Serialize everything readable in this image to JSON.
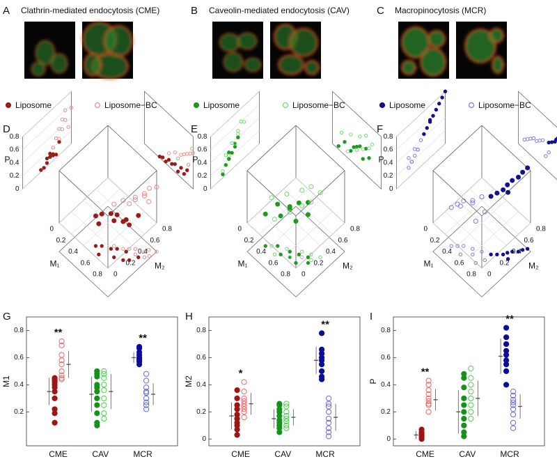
{
  "panels": [
    {
      "label": "A",
      "title": "Clathrin-mediated endocytosis (CME)"
    },
    {
      "label": "B",
      "title": "Caveolin-mediated endocytosis (CAV)"
    },
    {
      "label": "C",
      "title": "Macropinocytosis (MCR)"
    }
  ],
  "chart_data": [
    {
      "type": "scatter3d",
      "label": "D",
      "xlabel": "M₁",
      "ylabel": "M₂",
      "zlabel": "P",
      "xlim": [
        0,
        0.8
      ],
      "ylim": [
        0,
        0.8
      ],
      "zlim": [
        0,
        0.8
      ],
      "xticks": [
        0,
        0.2,
        0.4,
        0.6,
        0.8
      ],
      "yticks": [
        0,
        0.2,
        0.4,
        0.6,
        0.8
      ],
      "zticks": [
        0,
        0.2,
        0.4,
        0.6,
        0.8
      ],
      "series": [
        {
          "name": "Liposome",
          "color": "#9b1b1b",
          "filled": true,
          "x": [
            0.25,
            0.3,
            0.35,
            0.4,
            0.45,
            0.5,
            0.55,
            0.6,
            0.65,
            0.7
          ],
          "y": [
            0.35,
            0.4,
            0.3,
            0.45,
            0.5,
            0.4,
            0.55,
            0.45,
            0.5,
            0.6
          ],
          "z": [
            0.02,
            0.05,
            0.03,
            0.1,
            0.08,
            0.12,
            0.05,
            0.15,
            0.1,
            0.2
          ]
        },
        {
          "name": "Liposome−BC",
          "color": "#e88a8a",
          "filled": false,
          "x": [
            0.4,
            0.5,
            0.55,
            0.6,
            0.65,
            0.7,
            0.72,
            0.75,
            0.8,
            0.78
          ],
          "y": [
            0.5,
            0.55,
            0.6,
            0.65,
            0.6,
            0.7,
            0.75,
            0.65,
            0.8,
            0.7
          ],
          "z": [
            0.2,
            0.3,
            0.25,
            0.35,
            0.4,
            0.45,
            0.3,
            0.5,
            0.55,
            0.6
          ]
        }
      ]
    },
    {
      "type": "scatter3d",
      "label": "E",
      "xlabel": "M₁",
      "ylabel": "M₂",
      "zlabel": "P",
      "xlim": [
        0,
        0.8
      ],
      "ylim": [
        0,
        0.8
      ],
      "zlim": [
        0,
        0.8
      ],
      "xticks": [
        0,
        0.2,
        0.4,
        0.6,
        0.8
      ],
      "yticks": [
        0,
        0.2,
        0.4,
        0.6,
        0.8
      ],
      "zticks": [
        0,
        0.2,
        0.4,
        0.6,
        0.8
      ],
      "series": [
        {
          "name": "Liposome",
          "color": "#1f9a1f",
          "filled": true,
          "x": [
            0.1,
            0.2,
            0.3,
            0.35,
            0.4,
            0.45,
            0.5,
            0.55,
            0.6
          ],
          "y": [
            0.2,
            0.3,
            0.25,
            0.35,
            0.3,
            0.4,
            0.3,
            0.45,
            0.4
          ],
          "z": [
            0.05,
            0.2,
            0.15,
            0.25,
            0.3,
            0.35,
            0.2,
            0.4,
            0.3
          ]
        },
        {
          "name": "Liposome−BC",
          "color": "#6fd86f",
          "filled": false,
          "x": [
            0.15,
            0.25,
            0.3,
            0.4,
            0.45,
            0.5,
            0.55,
            0.6,
            0.65
          ],
          "y": [
            0.25,
            0.2,
            0.35,
            0.3,
            0.45,
            0.4,
            0.5,
            0.45,
            0.55
          ],
          "z": [
            0.3,
            0.1,
            0.4,
            0.25,
            0.5,
            0.35,
            0.6,
            0.45,
            0.55
          ]
        }
      ]
    },
    {
      "type": "scatter3d",
      "label": "F",
      "xlabel": "M₁",
      "ylabel": "M₂",
      "zlabel": "P",
      "xlim": [
        0,
        0.8
      ],
      "ylim": [
        0,
        0.8
      ],
      "zlim": [
        0,
        0.8
      ],
      "xticks": [
        0,
        0.2,
        0.4,
        0.6,
        0.8
      ],
      "yticks": [
        0,
        0.2,
        0.4,
        0.6,
        0.8
      ],
      "zticks": [
        0,
        0.2,
        0.4,
        0.6,
        0.8
      ],
      "series": [
        {
          "name": "Liposome",
          "color": "#101090",
          "filled": true,
          "x": [
            0.5,
            0.55,
            0.6,
            0.62,
            0.65,
            0.68,
            0.7,
            0.72,
            0.75
          ],
          "y": [
            0.45,
            0.5,
            0.55,
            0.6,
            0.65,
            0.55,
            0.7,
            0.75,
            0.8
          ],
          "z": [
            0.45,
            0.5,
            0.55,
            0.6,
            0.65,
            0.58,
            0.7,
            0.75,
            0.8
          ]
        },
        {
          "name": "Liposome−BC",
          "color": "#7a7ae0",
          "filled": false,
          "x": [
            0.1,
            0.15,
            0.2,
            0.25,
            0.3,
            0.35,
            0.4,
            0.45,
            0.5
          ],
          "y": [
            0.2,
            0.25,
            0.3,
            0.2,
            0.35,
            0.3,
            0.4,
            0.25,
            0.35
          ],
          "z": [
            0.15,
            0.2,
            0.25,
            0.3,
            0.3,
            0.35,
            0.4,
            0.2,
            0.3
          ]
        }
      ]
    },
    {
      "type": "strip",
      "label": "G",
      "ylabel": "M1",
      "categories": [
        "CME",
        "CAV",
        "MCR"
      ],
      "ylim": [
        -0.05,
        0.9
      ],
      "yticks": [
        0.2,
        0.4,
        0.6,
        0.8
      ],
      "annotations": [
        "**",
        null,
        "**"
      ],
      "series": [
        {
          "filled": true,
          "colors": [
            "#a01414",
            "#16921a",
            "#0c0c9c"
          ],
          "values": [
            [
              0.45,
              0.44,
              0.43,
              0.42,
              0.4,
              0.38,
              0.35,
              0.3,
              0.22,
              0.19,
              0.12
            ],
            [
              0.5,
              0.48,
              0.46,
              0.4,
              0.38,
              0.35,
              0.3,
              0.25,
              0.19,
              0.12,
              0.1
            ],
            [
              0.68,
              0.67,
              0.64,
              0.62,
              0.6,
              0.59,
              0.58,
              0.57,
              0.55
            ]
          ],
          "means": [
            0.35,
            0.33,
            0.6
          ],
          "sds": [
            0.1,
            0.13,
            0.04
          ]
        },
        {
          "filled": false,
          "colors": [
            "#e46a6a",
            "#4ccc4c",
            "#6a6ad8"
          ],
          "values": [
            [
              0.72,
              0.69,
              0.62,
              0.58,
              0.55,
              0.5,
              0.47,
              0.45,
              0.44
            ],
            [
              0.5,
              0.48,
              0.45,
              0.4,
              0.36,
              0.3,
              0.25,
              0.19,
              0.15
            ],
            [
              0.48,
              0.43,
              0.38,
              0.35,
              0.34,
              0.3,
              0.27,
              0.25,
              0.22
            ]
          ],
          "means": [
            0.55,
            0.35,
            0.33
          ],
          "sds": [
            0.1,
            0.13,
            0.08
          ]
        }
      ]
    },
    {
      "type": "strip",
      "label": "H",
      "ylabel": "M2",
      "categories": [
        "CME",
        "CAV",
        "MCR"
      ],
      "ylim": [
        -0.05,
        0.9
      ],
      "yticks": [
        0,
        0.2,
        0.4,
        0.6,
        0.8
      ],
      "annotations": [
        "*",
        null,
        "**"
      ],
      "series": [
        {
          "filled": true,
          "colors": [
            "#a01414",
            "#16921a",
            "#0c0c9c"
          ],
          "values": [
            [
              0.36,
              0.3,
              0.25,
              0.22,
              0.18,
              0.15,
              0.12,
              0.1,
              0.07,
              0.03
            ],
            [
              0.26,
              0.25,
              0.22,
              0.2,
              0.17,
              0.14,
              0.12,
              0.1,
              0.08,
              0.05
            ],
            [
              0.78,
              0.66,
              0.63,
              0.6,
              0.58,
              0.55,
              0.5,
              0.46,
              0.44
            ]
          ],
          "means": [
            0.17,
            0.15,
            0.58
          ],
          "sds": [
            0.1,
            0.07,
            0.1
          ]
        },
        {
          "filled": false,
          "colors": [
            "#e46a6a",
            "#4ccc4c",
            "#6a6ad8"
          ],
          "values": [
            [
              0.42,
              0.35,
              0.3,
              0.28,
              0.26,
              0.24,
              0.22,
              0.2,
              0.16
            ],
            [
              0.26,
              0.24,
              0.2,
              0.17,
              0.15,
              0.13,
              0.1,
              0.08
            ],
            [
              0.3,
              0.26,
              0.24,
              0.2,
              0.15,
              0.12,
              0.08,
              0.05,
              0.02
            ]
          ],
          "means": [
            0.26,
            0.16,
            0.16
          ],
          "sds": [
            0.08,
            0.06,
            0.1
          ]
        }
      ]
    },
    {
      "type": "strip",
      "label": "I",
      "ylabel": "P",
      "categories": [
        "CME",
        "CAV",
        "MCR"
      ],
      "ylim": [
        -0.05,
        0.9
      ],
      "yticks": [
        0,
        0.2,
        0.4,
        0.6,
        0.8
      ],
      "annotations": [
        "**",
        null,
        "**"
      ],
      "series": [
        {
          "filled": true,
          "colors": [
            "#a01414",
            "#16921a",
            "#0c0c9c"
          ],
          "values": [
            [
              0.07,
              0.05,
              0.04,
              0.03,
              0.02,
              0.01,
              0
            ],
            [
              0.48,
              0.45,
              0.38,
              0.3,
              0.25,
              0.2,
              0.15,
              0.1,
              0.05,
              0.02
            ],
            [
              0.82,
              0.75,
              0.7,
              0.65,
              0.62,
              0.58,
              0.55,
              0.5,
              0.4
            ]
          ],
          "means": [
            0.03,
            0.2,
            0.61
          ],
          "sds": [
            0.03,
            0.16,
            0.13
          ]
        },
        {
          "filled": false,
          "colors": [
            "#e46a6a",
            "#4ccc4c",
            "#6a6ad8"
          ],
          "values": [
            [
              0.43,
              0.4,
              0.36,
              0.33,
              0.3,
              0.28,
              0.26,
              0.25,
              0.2
            ],
            [
              0.52,
              0.45,
              0.4,
              0.35,
              0.3,
              0.25,
              0.2,
              0.15
            ],
            [
              0.35,
              0.32,
              0.29,
              0.27,
              0.25,
              0.22,
              0.18,
              0.12,
              0.08
            ]
          ],
          "means": [
            0.29,
            0.3,
            0.24
          ],
          "sds": [
            0.08,
            0.13,
            0.09
          ]
        }
      ]
    }
  ]
}
